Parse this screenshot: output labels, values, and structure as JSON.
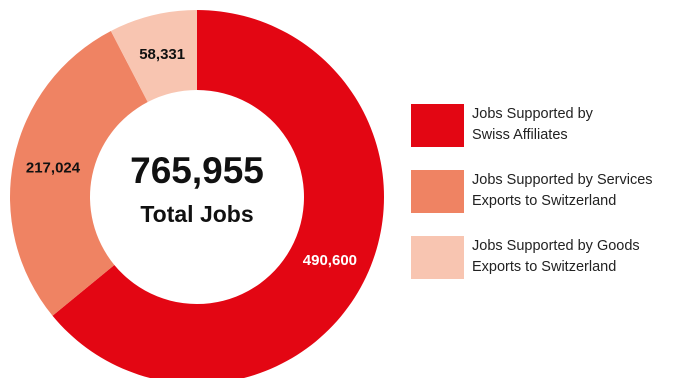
{
  "chart_data": {
    "type": "pie",
    "style": "donut",
    "center": {
      "total": "765,955",
      "caption": "Total Jobs"
    },
    "slices": [
      {
        "label": "Jobs Supported by Swiss Affiliates",
        "value": 490600,
        "value_label": "490,600",
        "color": "#e30613",
        "label_color": "#ffffff"
      },
      {
        "label": "Jobs Supported by Services Exports to Switzerland",
        "value": 217024,
        "value_label": "217,024",
        "color": "#ef8363",
        "label_color": "#111111"
      },
      {
        "label": "Jobs Supported by Goods Exports to Switzerland",
        "value": 58331,
        "value_label": "58,331",
        "color": "#f8c5b1",
        "label_color": "#111111"
      }
    ],
    "legend": {
      "position": "right",
      "items": [
        {
          "text": "Jobs Supported by\nSwiss Affiliates",
          "color": "#e30613"
        },
        {
          "text": "Jobs Supported by Services\nExports to Switzerland",
          "color": "#ef8363"
        },
        {
          "text": "Jobs Supported by Goods\nExports to Switzerland",
          "color": "#f8c5b1"
        }
      ]
    }
  }
}
